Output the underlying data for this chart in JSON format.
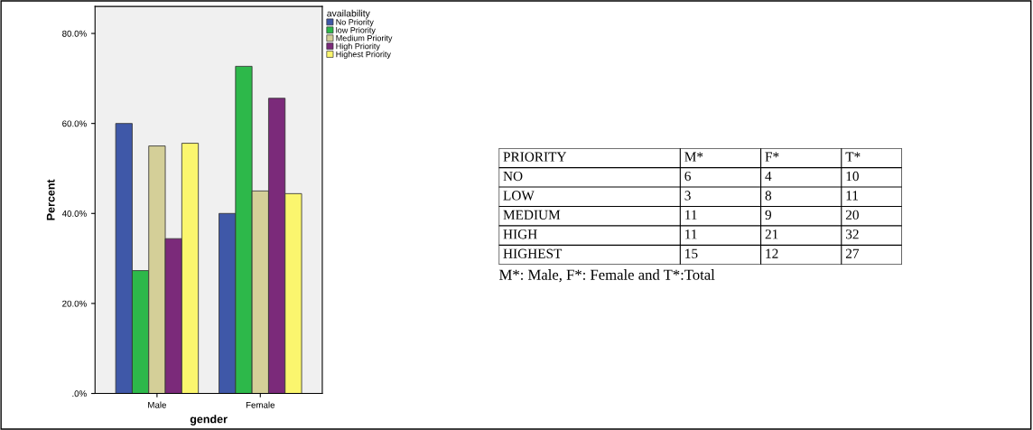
{
  "chart_data": [
    {
      "type": "bar",
      "xlabel": "gender",
      "ylabel": "Percent",
      "legend_title": "availability",
      "legend": "top right",
      "grid": false,
      "categories": [
        "Male",
        "Female"
      ],
      "ylim": [
        0,
        86
      ],
      "yticks": [
        {
          "value": 0,
          "label": ".0%"
        },
        {
          "value": 20,
          "label": "20.0%"
        },
        {
          "value": 40,
          "label": "40.0%"
        },
        {
          "value": 60,
          "label": "60.0%"
        },
        {
          "value": 80,
          "label": "80.0%"
        }
      ],
      "series": [
        {
          "name": "No Priority",
          "color": "#3f58a8",
          "values": [
            60.0,
            40.0
          ]
        },
        {
          "name": "low Priority",
          "color": "#2db84a",
          "values": [
            27.3,
            72.7
          ]
        },
        {
          "name": "Medium Priority",
          "color": "#d4cf98",
          "values": [
            55.0,
            45.0
          ]
        },
        {
          "name": "High Priority",
          "color": "#7b2a7a",
          "values": [
            34.4,
            65.6
          ]
        },
        {
          "name": "Highest Priority",
          "color": "#fbf66e",
          "values": [
            55.6,
            44.4
          ]
        }
      ]
    },
    {
      "type": "other",
      "ylabel": "PRIORITY",
      "data_labels": true,
      "categories": [
        "NO",
        "LOW",
        "MEDIUM",
        "HIGH",
        "HIGHEST"
      ],
      "series": [
        {
          "name": "M*",
          "values": [
            6,
            3,
            11,
            11,
            15
          ]
        },
        {
          "name": "F*",
          "values": [
            4,
            8,
            9,
            21,
            12
          ]
        },
        {
          "name": "T*",
          "values": [
            10,
            11,
            20,
            32,
            27
          ]
        }
      ],
      "annotations": [
        "M*: Male, F*: Female and T*:Total"
      ]
    }
  ]
}
